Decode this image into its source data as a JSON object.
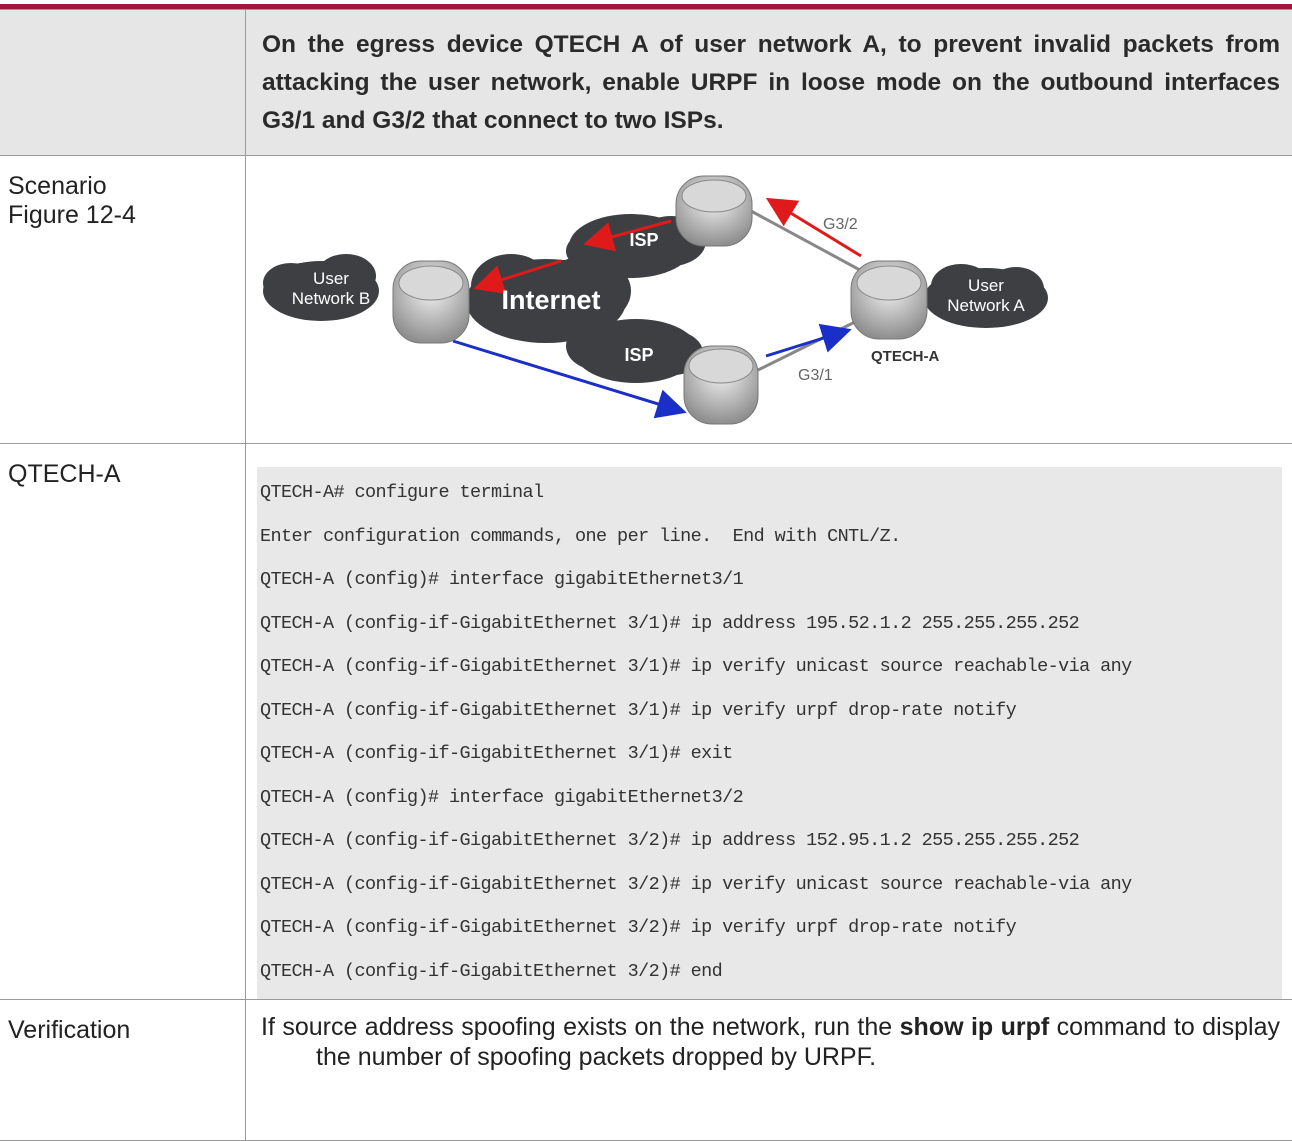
{
  "header": {
    "text": "On the egress device QTECH A of user network A, to prevent invalid packets from attacking the user network, enable URPF in loose mode on the outbound interfaces G3/1 and G3/2 that connect to two ISPs."
  },
  "rows": [
    {
      "label": [
        "Scenario",
        "Figure 12-4"
      ],
      "figure": {
        "user_b": [
          "User",
          "Network B"
        ],
        "internet": "Internet",
        "isp_top": "ISP",
        "isp_bottom": "ISP",
        "g32": "G3/2",
        "g31": "G3/1",
        "user_a": [
          "User",
          "Network A"
        ],
        "device": "QTECH-A"
      }
    },
    {
      "label": "QTECH-A",
      "code": [
        "QTECH-A# configure terminal",
        "Enter configuration commands, one per line.  End with CNTL/Z.",
        "QTECH-A (config)# interface gigabitEthernet3/1",
        "QTECH-A (config-if-GigabitEthernet 3/1)# ip address 195.52.1.2 255.255.255.252",
        "QTECH-A (config-if-GigabitEthernet 3/1)# ip verify unicast source reachable-via any",
        "QTECH-A (config-if-GigabitEthernet 3/1)# ip verify urpf drop-rate notify",
        "QTECH-A (config-if-GigabitEthernet 3/1)# exit",
        "QTECH-A (config)# interface gigabitEthernet3/2",
        "QTECH-A (config-if-GigabitEthernet 3/2)# ip address 152.95.1.2 255.255.255.252",
        "QTECH-A (config-if-GigabitEthernet 3/2)# ip verify unicast source reachable-via any",
        "QTECH-A (config-if-GigabitEthernet 3/2)# ip verify urpf drop-rate notify",
        "QTECH-A (config-if-GigabitEthernet 3/2)# end"
      ]
    },
    {
      "label": "Verification",
      "text": [
        "If source address spoofing exists on the network, run the ",
        "show ip urpf",
        " command to display the number of spoofing packets dropped by URPF."
      ]
    }
  ]
}
